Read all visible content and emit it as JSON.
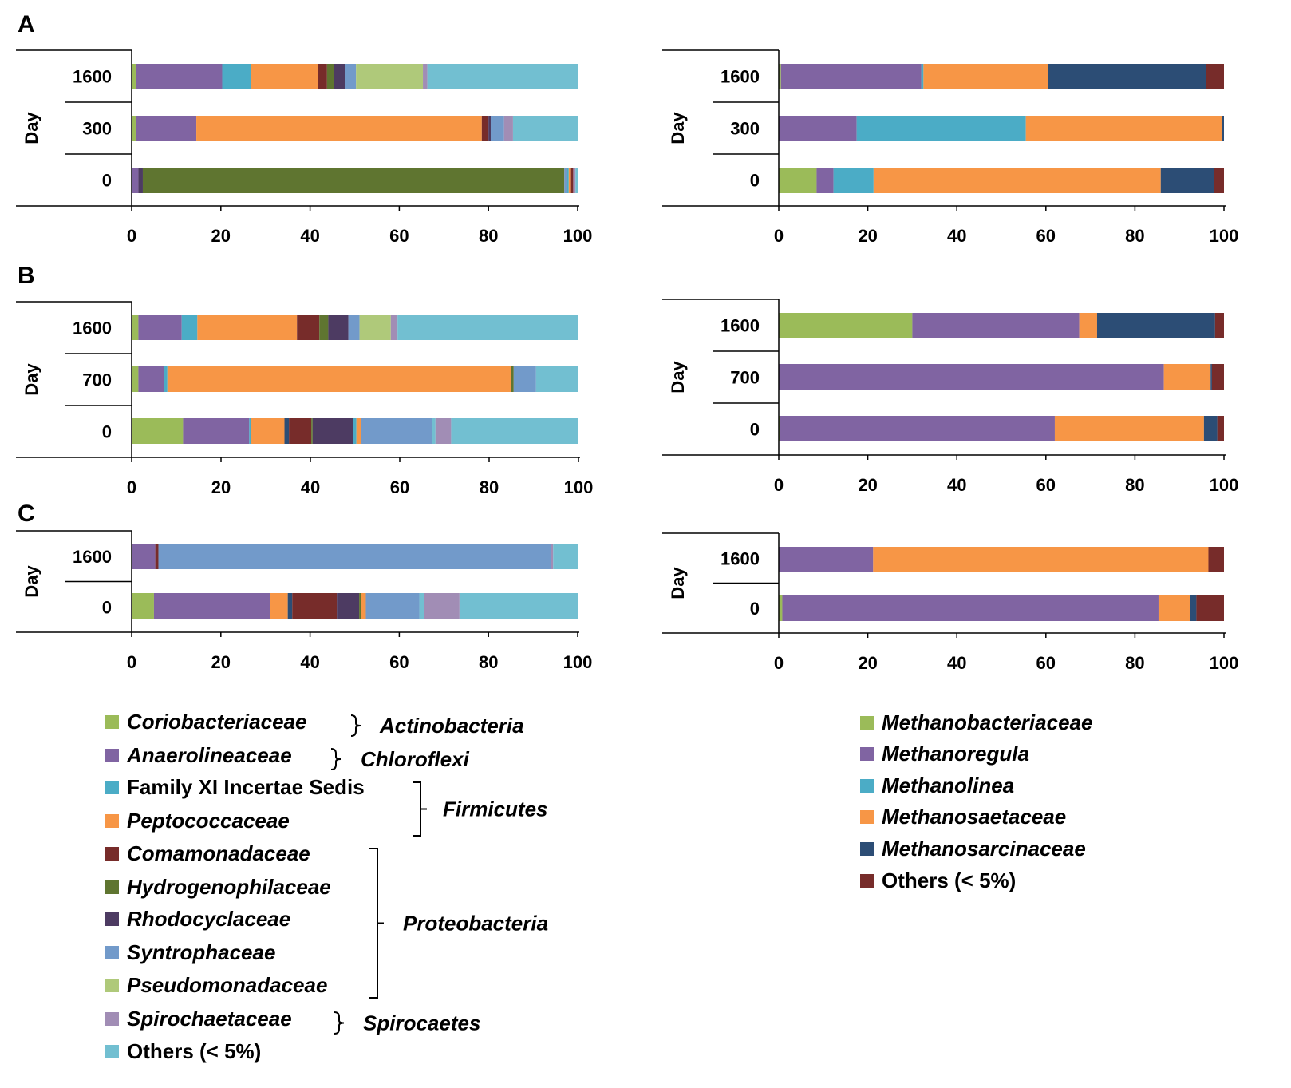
{
  "chart_data": [
    {
      "type": "bar",
      "orientation": "horizontal",
      "stacked": true,
      "panel": "A",
      "side": "bacteria",
      "ylabel": "Day",
      "categories": [
        "1600",
        "300",
        "0"
      ],
      "xlim": [
        0,
        100
      ],
      "xticks": [
        "0",
        "20",
        "40",
        "60",
        "80",
        "100"
      ],
      "series_values": [
        [
          [
            "Coriobacteriaceae",
            1
          ],
          [
            "Anaerolineaceae",
            19.3
          ],
          [
            "Family XI Incertae Sedis",
            6.5
          ],
          [
            "Peptococcaceae",
            15
          ],
          [
            "Comamonadaceae",
            2
          ],
          [
            "Hydrogenophilaceae",
            1.5
          ],
          [
            "Rhodocyclaceae",
            2.5
          ],
          [
            "Syntrophaceae",
            2.5
          ],
          [
            "Pseudomonadaceae",
            15
          ],
          [
            "Spirochaetaceae",
            1
          ],
          [
            "Others (< 5%)",
            33.7
          ]
        ],
        [
          [
            "Coriobacteriaceae",
            1
          ],
          [
            "Anaerolineaceae",
            13.5
          ],
          [
            "Peptococcaceae",
            64
          ],
          [
            "Comamonadaceae",
            1.5
          ],
          [
            "Rhodocyclaceae",
            0.5
          ],
          [
            "Syntrophaceae",
            3
          ],
          [
            "Spirochaetaceae",
            2
          ],
          [
            "Others (< 5%)",
            14.5
          ]
        ],
        [
          [
            "Anaerolineaceae",
            1.5
          ],
          [
            "Rhodocyclaceae",
            1
          ],
          [
            "Hydrogenophilaceae",
            94.5
          ],
          [
            "Syntrophaceae",
            0.5
          ],
          [
            "Family XI Incertae Sedis",
            0.5
          ],
          [
            "Peptococcaceae",
            0.5
          ],
          [
            "Comamonadaceae",
            0.5
          ],
          [
            "Spirochaetaceae",
            0.5
          ],
          [
            "Others (< 5%)",
            0.5
          ]
        ]
      ]
    },
    {
      "type": "bar",
      "orientation": "horizontal",
      "stacked": true,
      "panel": "A",
      "side": "archaea",
      "ylabel": "Day",
      "categories": [
        "1600",
        "300",
        "0"
      ],
      "xlim": [
        0,
        100
      ],
      "xticks": [
        "0",
        "20",
        "40",
        "60",
        "80",
        "100"
      ],
      "series_values": [
        [
          [
            "Methanobacteriaceae",
            0.5
          ],
          [
            "Methanoregula",
            31.5
          ],
          [
            "Methanolinea",
            0.5
          ],
          [
            "Methanosaetaceae",
            28
          ],
          [
            "Methanosarcinaceae",
            35.5
          ],
          [
            "Others (< 5%)",
            4
          ]
        ],
        [
          [
            "Methanoregula",
            17.5
          ],
          [
            "Methanolinea",
            38
          ],
          [
            "Methanosaetaceae",
            44
          ],
          [
            "Methanosarcinaceae",
            0.5
          ]
        ],
        [
          [
            "Methanobacteriaceae",
            8.5
          ],
          [
            "Methanoregula",
            3.8
          ],
          [
            "Methanolinea",
            9
          ],
          [
            "Methanosaetaceae",
            64.5
          ],
          [
            "Methanosarcinaceae",
            12
          ],
          [
            "Others (< 5%)",
            2.2
          ]
        ]
      ]
    },
    {
      "type": "bar",
      "orientation": "horizontal",
      "stacked": true,
      "panel": "B",
      "side": "bacteria",
      "ylabel": "Day",
      "categories": [
        "1600",
        "700",
        "0"
      ],
      "xlim": [
        0,
        100
      ],
      "xticks": [
        "0",
        "20",
        "40",
        "60",
        "80",
        "100"
      ],
      "series_values": [
        [
          [
            "Coriobacteriaceae",
            1.5
          ],
          [
            "Anaerolineaceae",
            9.7
          ],
          [
            "Family XI Incertae Sedis",
            3.5
          ],
          [
            "Peptococcaceae",
            22.3
          ],
          [
            "Comamonadaceae",
            5
          ],
          [
            "Hydrogenophilaceae",
            2
          ],
          [
            "Rhodocyclaceae",
            4.5
          ],
          [
            "Syntrophaceae",
            2.5
          ],
          [
            "Pseudomonadaceae",
            7
          ],
          [
            "Spirochaetaceae",
            1.5
          ],
          [
            "Others (< 5%)",
            40.5
          ]
        ],
        [
          [
            "Coriobacteriaceae",
            1.5
          ],
          [
            "Anaerolineaceae",
            5.7
          ],
          [
            "Family XI Incertae Sedis",
            0.8
          ],
          [
            "Peptococcaceae",
            77
          ],
          [
            "Hydrogenophilaceae",
            0.5
          ],
          [
            "Syntrophaceae",
            5
          ],
          [
            "Others (< 5%)",
            9.5
          ]
        ],
        [
          [
            "Coriobacteriaceae",
            11.5
          ],
          [
            "Anaerolineaceae",
            14.8
          ],
          [
            "Family XI Incertae Sedis",
            0.4
          ],
          [
            "Peptococcaceae",
            7.5
          ],
          [
            "Methanosarcinaceae",
            1
          ],
          [
            "Comamonadaceae",
            5
          ],
          [
            "Hydrogenophilaceae",
            0.3
          ],
          [
            "Rhodocyclaceae",
            9
          ],
          [
            "Family XI Incertae Sedis",
            0.8
          ],
          [
            "Peptococcaceae",
            1
          ],
          [
            "Syntrophaceae",
            16
          ],
          [
            "Others (< 5%)",
            0.7
          ],
          [
            "Spirochaetaceae",
            3.5
          ],
          [
            "Others (< 5%)",
            28.5
          ]
        ]
      ]
    },
    {
      "type": "bar",
      "orientation": "horizontal",
      "stacked": true,
      "panel": "B",
      "side": "archaea",
      "ylabel": "Day",
      "categories": [
        "1600",
        "700",
        "0"
      ],
      "xlim": [
        0,
        100
      ],
      "xticks": [
        "0",
        "20",
        "40",
        "60",
        "80",
        "100"
      ],
      "series_values": [
        [
          [
            "Methanobacteriaceae",
            30
          ],
          [
            "Methanoregula",
            37.5
          ],
          [
            "Methanosaetaceae",
            4
          ],
          [
            "Methanosarcinaceae",
            26.5
          ],
          [
            "Others (< 5%)",
            2
          ]
        ],
        [
          [
            "Methanoregula",
            86.5
          ],
          [
            "Methanosaetaceae",
            10.5
          ],
          [
            "Methanosarcinaceae",
            0.3
          ],
          [
            "Others (< 5%)",
            2.7
          ]
        ],
        [
          [
            "Methanobacteriaceae",
            0.3
          ],
          [
            "Methanoregula",
            61.7
          ],
          [
            "Methanosaetaceae",
            33.5
          ],
          [
            "Methanosarcinaceae",
            3
          ],
          [
            "Others (< 5%)",
            1.5
          ]
        ]
      ]
    },
    {
      "type": "bar",
      "orientation": "horizontal",
      "stacked": true,
      "panel": "C",
      "side": "bacteria",
      "ylabel": "Day",
      "categories": [
        "1600",
        "0"
      ],
      "xlim": [
        0,
        100
      ],
      "xticks": [
        "0",
        "20",
        "40",
        "60",
        "80",
        "100"
      ],
      "series_values": [
        [
          [
            "Anaerolineaceae",
            5.3
          ],
          [
            "Comamonadaceae",
            0.7
          ],
          [
            "Syntrophaceae",
            88
          ],
          [
            "Spirochaetaceae",
            0.5
          ],
          [
            "Others (< 5%)",
            5.5
          ]
        ],
        [
          [
            "Coriobacteriaceae",
            5
          ],
          [
            "Anaerolineaceae",
            26
          ],
          [
            "Peptococcaceae",
            4
          ],
          [
            "Methanosarcinaceae",
            1
          ],
          [
            "Comamonadaceae",
            10
          ],
          [
            "Rhodocyclaceae",
            5
          ],
          [
            "Hydrogenophilaceae",
            0.5
          ],
          [
            "Peptococcaceae",
            1
          ],
          [
            "Syntrophaceae",
            12
          ],
          [
            "Others (< 5%)",
            1
          ],
          [
            "Spirochaetaceae",
            8
          ],
          [
            "Others (< 5%)",
            26.5
          ]
        ]
      ]
    },
    {
      "type": "bar",
      "orientation": "horizontal",
      "stacked": true,
      "panel": "C",
      "side": "archaea",
      "ylabel": "Day",
      "categories": [
        "1600",
        "0"
      ],
      "xlim": [
        0,
        100
      ],
      "xticks": [
        "0",
        "20",
        "40",
        "60",
        "80",
        "100"
      ],
      "series_values": [
        [
          [
            "Methanoregula",
            21.2
          ],
          [
            "Methanosaetaceae",
            75.3
          ],
          [
            "Others (< 5%)",
            3.5
          ]
        ],
        [
          [
            "Methanobacteriaceae",
            0.8
          ],
          [
            "Methanoregula",
            84.5
          ],
          [
            "Methanosaetaceae",
            7
          ],
          [
            "Methanosarcinaceae",
            1.5
          ],
          [
            "Others (< 5%)",
            6.2
          ]
        ]
      ]
    }
  ],
  "colors": {
    "Coriobacteriaceae": "#9bbb59",
    "Anaerolineaceae": "#8064a2",
    "Family XI Incertae Sedis": "#4bacc6",
    "Peptococcaceae": "#f79646",
    "Comamonadaceae": "#772c2a",
    "Hydrogenophilaceae": "#5f7530",
    "Rhodocyclaceae": "#4d3b62",
    "Syntrophaceae": "#729aca",
    "Pseudomonadaceae": "#afc97a",
    "Spirochaetaceae": "#a18db5",
    "Others (< 5%)": "#72bfd1",
    "Methanobacteriaceae": "#9bbb59",
    "Methanoregula": "#8064a2",
    "Methanolinea": "#4bacc6",
    "Methanosaetaceae": "#f79646",
    "Methanosarcinaceae": "#2c4d75",
    "Archaea Others (< 5%)": "#772c2a"
  },
  "panel_labels": [
    "A",
    "B",
    "C"
  ],
  "legend_left": [
    {
      "label": "Coriobacteriaceae",
      "italic": true
    },
    {
      "label": "Anaerolineaceae",
      "italic": true
    },
    {
      "label": "Family XI Incertae Sedis",
      "italic": false
    },
    {
      "label": "Peptococcaceae",
      "italic": true
    },
    {
      "label": "Comamonadaceae",
      "italic": true
    },
    {
      "label": "Hydrogenophilaceae",
      "italic": true
    },
    {
      "label": "Rhodocyclaceae",
      "italic": true
    },
    {
      "label": "Syntrophaceae",
      "italic": true
    },
    {
      "label": "Pseudomonadaceae",
      "italic": true
    },
    {
      "label": "Spirochaetaceae",
      "italic": true
    },
    {
      "label": "Others (< 5%)",
      "italic": false
    }
  ],
  "legend_groups": [
    {
      "name": "Actinobacteria",
      "members": [
        "Coriobacteriaceae"
      ]
    },
    {
      "name": "Chloroflexi",
      "members": [
        "Anaerolineaceae"
      ]
    },
    {
      "name": "Firmicutes",
      "members": [
        "Family XI Incertae Sedis",
        "Peptococcaceae"
      ]
    },
    {
      "name": "Proteobacteria",
      "members": [
        "Comamonadaceae",
        "Hydrogenophilaceae",
        "Rhodocyclaceae",
        "Syntrophaceae",
        "Pseudomonadaceae"
      ]
    },
    {
      "name": "Spirocaetes",
      "members": [
        "Spirochaetaceae"
      ]
    }
  ],
  "legend_right": [
    {
      "label": "Methanobacteriaceae",
      "italic": true,
      "color_key": "Methanobacteriaceae"
    },
    {
      "label": "Methanoregula",
      "italic": true,
      "color_key": "Methanoregula"
    },
    {
      "label": "Methanolinea",
      "italic": true,
      "color_key": "Methanolinea"
    },
    {
      "label": "Methanosaetaceae",
      "italic": true,
      "color_key": "Methanosaetaceae"
    },
    {
      "label": "Methanosarcinaceae",
      "italic": true,
      "color_key": "Methanosarcinaceae"
    },
    {
      "label": "Others (< 5%)",
      "italic": false,
      "color_key": "Archaea Others (< 5%)"
    }
  ]
}
